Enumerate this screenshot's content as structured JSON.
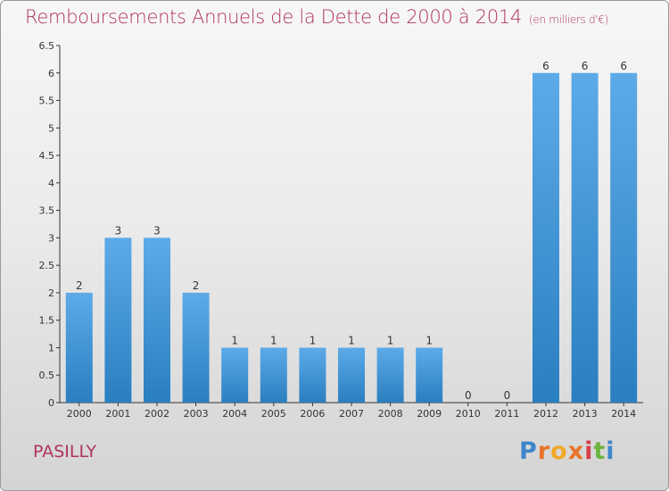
{
  "header": {
    "title": "Remboursements Annuels de la Dette de 2000 à 2014",
    "unit": "(en milliers d'€)"
  },
  "footer": {
    "commune": "PASILLY",
    "logo_letters": [
      "P",
      "r",
      "o",
      "x",
      "i",
      "t",
      "i"
    ]
  },
  "chart_data": {
    "type": "bar",
    "title": "Remboursements Annuels de la Dette de 2000 à 2014",
    "subtitle": "(en milliers d'€)",
    "xlabel": "",
    "ylabel": "",
    "categories": [
      "2000",
      "2001",
      "2002",
      "2003",
      "2004",
      "2005",
      "2006",
      "2007",
      "2008",
      "2009",
      "2010",
      "2011",
      "2012",
      "2013",
      "2014"
    ],
    "values": [
      2,
      3,
      3,
      2,
      1,
      1,
      1,
      1,
      1,
      1,
      0,
      0,
      6,
      6,
      6
    ],
    "data_labels": [
      "2",
      "3",
      "3",
      "2",
      "1",
      "1",
      "1",
      "1",
      "1",
      "1",
      "0",
      "0",
      "6",
      "6",
      "6"
    ],
    "ylim": [
      0,
      6.5
    ],
    "yticks": [
      0,
      0.5,
      1,
      1.5,
      2,
      2.5,
      3,
      3.5,
      4,
      4.5,
      5,
      5.5,
      6,
      6.5
    ],
    "ytick_labels": [
      "0",
      "0.5",
      "1",
      "1.5",
      "2",
      "2.5",
      "3",
      "3.5",
      "4",
      "4.5",
      "5",
      "5.5",
      "6",
      "6.5"
    ],
    "grid": false,
    "bar_color_top": "#5daae8",
    "bar_color_bottom": "#2a7fc0"
  }
}
